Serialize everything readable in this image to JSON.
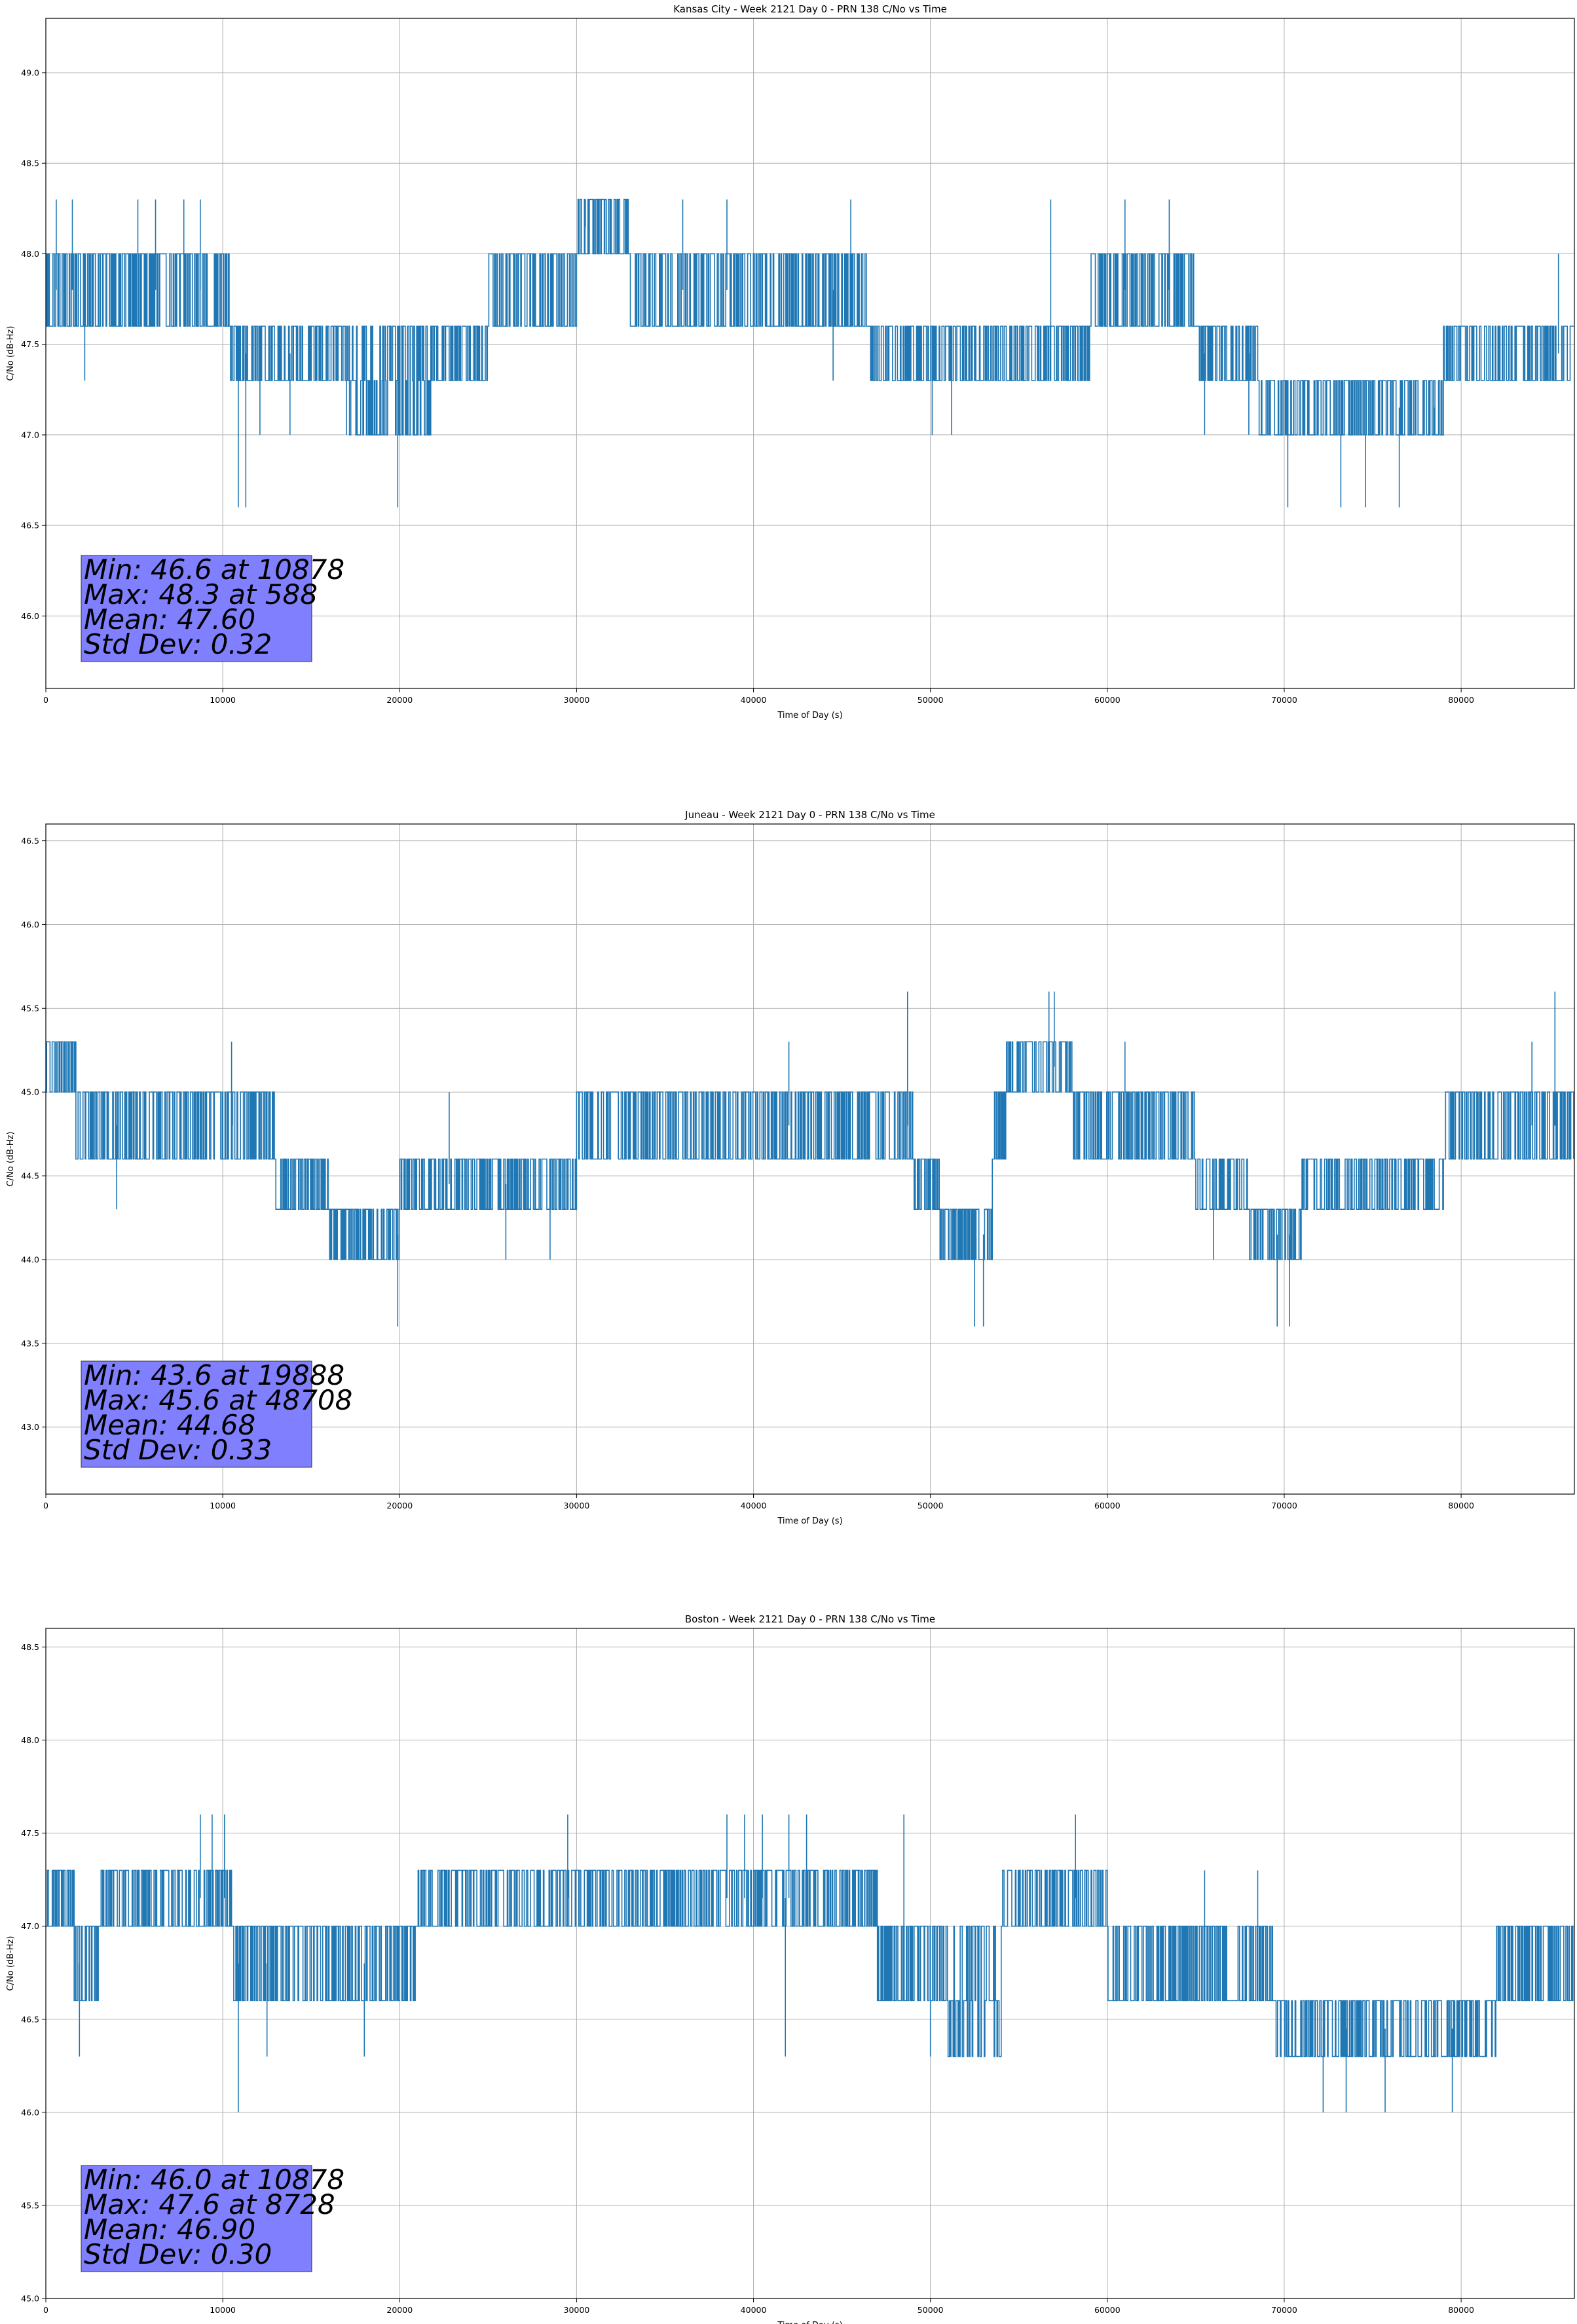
{
  "chart_data": [
    {
      "type": "line",
      "title": "Kansas City - Week 2121 Day 0 - PRN 138 C/No vs Time",
      "xlabel": "Time of Day (s)",
      "ylabel": "C/No (dB-Hz)",
      "xlim": [
        0,
        86400
      ],
      "ylim": [
        45.6,
        49.3
      ],
      "xticks": [
        0,
        10000,
        20000,
        30000,
        40000,
        50000,
        60000,
        70000,
        80000
      ],
      "yticks": [
        46.0,
        46.5,
        47.0,
        47.5,
        48.0,
        48.5,
        49.0
      ],
      "ytick_labels": [
        "46.0",
        "46.5",
        "47.0",
        "47.5",
        "48.0",
        "48.5",
        "49.0"
      ],
      "grid": true,
      "color": "#1f77b4",
      "stats_lines": [
        "Min: 46.6 at 10878",
        "Max: 48.3 at 588",
        "Mean: 47.60",
        "Std Dev: 0.32"
      ],
      "bands": [
        {
          "x0": 0,
          "x1": 10400,
          "levels": [
            47.6,
            48.0
          ]
        },
        {
          "x0": 10400,
          "x1": 17000,
          "levels": [
            47.3,
            47.6
          ]
        },
        {
          "x0": 17000,
          "x1": 22000,
          "levels": [
            47.0,
            47.3,
            47.6
          ]
        },
        {
          "x0": 22000,
          "x1": 25000,
          "levels": [
            47.3,
            47.6
          ]
        },
        {
          "x0": 25000,
          "x1": 30000,
          "levels": [
            47.6,
            48.0
          ]
        },
        {
          "x0": 30000,
          "x1": 33000,
          "levels": [
            48.0,
            48.3
          ]
        },
        {
          "x0": 33000,
          "x1": 46500,
          "levels": [
            47.6,
            48.0
          ]
        },
        {
          "x0": 46500,
          "x1": 59000,
          "levels": [
            47.3,
            47.6
          ]
        },
        {
          "x0": 59000,
          "x1": 65000,
          "levels": [
            47.6,
            48.0
          ]
        },
        {
          "x0": 65000,
          "x1": 68500,
          "levels": [
            47.3,
            47.6
          ]
        },
        {
          "x0": 68500,
          "x1": 72000,
          "levels": [
            47.0,
            47.3
          ]
        },
        {
          "x0": 72000,
          "x1": 75000,
          "levels": [
            47.0,
            47.3
          ]
        },
        {
          "x0": 75000,
          "x1": 79000,
          "levels": [
            47.0,
            47.3
          ]
        },
        {
          "x0": 79000,
          "x1": 86400,
          "levels": [
            47.3,
            47.6
          ]
        }
      ],
      "spikes": [
        [
          588,
          48.3
        ],
        [
          1500,
          48.3
        ],
        [
          2200,
          47.3
        ],
        [
          5200,
          48.3
        ],
        [
          6200,
          48.3
        ],
        [
          7800,
          48.3
        ],
        [
          8728,
          48.3
        ],
        [
          10878,
          46.6
        ],
        [
          11300,
          46.6
        ],
        [
          13800,
          47.0
        ],
        [
          19888,
          46.6
        ],
        [
          12100,
          47.0
        ],
        [
          17000,
          47.0
        ],
        [
          30500,
          48.3
        ],
        [
          36000,
          48.3
        ],
        [
          38500,
          48.3
        ],
        [
          44500,
          47.3
        ],
        [
          45500,
          48.3
        ],
        [
          50100,
          47.0
        ],
        [
          51200,
          47.0
        ],
        [
          56800,
          48.3
        ],
        [
          61000,
          48.3
        ],
        [
          63500,
          48.3
        ],
        [
          65500,
          47.0
        ],
        [
          68000,
          47.0
        ],
        [
          70200,
          46.6
        ],
        [
          73200,
          46.6
        ],
        [
          74600,
          46.6
        ],
        [
          76500,
          46.6
        ],
        [
          78500,
          47.0
        ],
        [
          85500,
          48.0
        ]
      ]
    },
    {
      "type": "line",
      "title": "Juneau - Week 2121 Day 0 - PRN 138 C/No vs Time",
      "xlabel": "Time of Day (s)",
      "ylabel": "C/No (dB-Hz)",
      "xlim": [
        0,
        86400
      ],
      "ylim": [
        42.6,
        46.6
      ],
      "xticks": [
        0,
        10000,
        20000,
        30000,
        40000,
        50000,
        60000,
        70000,
        80000
      ],
      "yticks": [
        43.0,
        43.5,
        44.0,
        44.5,
        45.0,
        45.5,
        46.0,
        46.5
      ],
      "ytick_labels": [
        "43.0",
        "43.5",
        "44.0",
        "44.5",
        "45.0",
        "45.5",
        "46.0",
        "46.5"
      ],
      "grid": true,
      "color": "#1f77b4",
      "stats_lines": [
        "Min: 43.6 at 19888",
        "Max: 45.6 at 48708",
        "Mean: 44.68",
        "Std Dev: 0.33"
      ],
      "bands": [
        {
          "x0": 0,
          "x1": 1700,
          "levels": [
            45.0,
            45.3
          ]
        },
        {
          "x0": 1700,
          "x1": 13000,
          "levels": [
            44.6,
            45.0
          ]
        },
        {
          "x0": 13000,
          "x1": 16000,
          "levels": [
            44.3,
            44.6
          ]
        },
        {
          "x0": 16000,
          "x1": 20000,
          "levels": [
            44.0,
            44.3
          ]
        },
        {
          "x0": 20000,
          "x1": 24000,
          "levels": [
            44.3,
            44.6
          ]
        },
        {
          "x0": 24000,
          "x1": 30000,
          "levels": [
            44.3,
            44.6
          ]
        },
        {
          "x0": 30000,
          "x1": 49000,
          "levels": [
            44.6,
            45.0
          ]
        },
        {
          "x0": 49000,
          "x1": 50500,
          "levels": [
            44.3,
            44.6
          ]
        },
        {
          "x0": 50500,
          "x1": 53500,
          "levels": [
            44.0,
            44.3
          ]
        },
        {
          "x0": 53500,
          "x1": 54300,
          "levels": [
            44.6,
            45.0
          ]
        },
        {
          "x0": 54300,
          "x1": 58000,
          "levels": [
            45.0,
            45.3
          ]
        },
        {
          "x0": 58000,
          "x1": 65000,
          "levels": [
            44.6,
            45.0
          ]
        },
        {
          "x0": 65000,
          "x1": 68000,
          "levels": [
            44.3,
            44.6
          ]
        },
        {
          "x0": 68000,
          "x1": 71000,
          "levels": [
            44.0,
            44.3
          ]
        },
        {
          "x0": 71000,
          "x1": 79000,
          "levels": [
            44.3,
            44.6
          ]
        },
        {
          "x0": 79000,
          "x1": 86400,
          "levels": [
            44.6,
            45.0
          ]
        }
      ],
      "spikes": [
        [
          19888,
          43.6
        ],
        [
          48708,
          45.6
        ],
        [
          52500,
          43.6
        ],
        [
          53000,
          43.6
        ],
        [
          56700,
          45.6
        ],
        [
          57000,
          45.6
        ],
        [
          69600,
          43.6
        ],
        [
          70300,
          43.6
        ],
        [
          85300,
          45.6
        ],
        [
          10500,
          45.3
        ],
        [
          22800,
          45.0
        ],
        [
          26000,
          44.0
        ],
        [
          28500,
          44.0
        ],
        [
          61000,
          45.3
        ],
        [
          66000,
          44.0
        ],
        [
          4000,
          44.3
        ],
        [
          42000,
          45.3
        ],
        [
          84000,
          45.3
        ]
      ]
    },
    {
      "type": "line",
      "title": "Boston - Week 2121 Day 0 - PRN 138 C/No vs Time",
      "xlabel": "Time of Day (s)",
      "ylabel": "C/No (dB-Hz)",
      "xlim": [
        0,
        86400
      ],
      "ylim": [
        45.0,
        48.6
      ],
      "xticks": [
        0,
        10000,
        20000,
        30000,
        40000,
        50000,
        60000,
        70000,
        80000
      ],
      "yticks": [
        45.0,
        45.5,
        46.0,
        46.5,
        47.0,
        47.5,
        48.0,
        48.5
      ],
      "ytick_labels": [
        "45.0",
        "45.5",
        "46.0",
        "46.5",
        "47.0",
        "47.5",
        "48.0",
        "48.5"
      ],
      "grid": true,
      "color": "#1f77b4",
      "stats_lines": [
        "Min: 46.0 at 10878",
        "Max: 47.6 at 8728",
        "Mean: 46.90",
        "Std Dev: 0.30"
      ],
      "bands": [
        {
          "x0": 0,
          "x1": 1600,
          "levels": [
            47.0,
            47.3
          ]
        },
        {
          "x0": 1600,
          "x1": 3000,
          "levels": [
            46.6,
            47.0
          ]
        },
        {
          "x0": 3000,
          "x1": 10500,
          "levels": [
            47.0,
            47.3
          ]
        },
        {
          "x0": 10500,
          "x1": 21000,
          "levels": [
            46.6,
            47.0
          ]
        },
        {
          "x0": 21000,
          "x1": 47000,
          "levels": [
            47.0,
            47.3
          ]
        },
        {
          "x0": 47000,
          "x1": 51000,
          "levels": [
            46.6,
            47.0
          ]
        },
        {
          "x0": 51000,
          "x1": 54000,
          "levels": [
            46.3,
            46.6,
            47.0
          ]
        },
        {
          "x0": 54000,
          "x1": 60000,
          "levels": [
            47.0,
            47.3
          ]
        },
        {
          "x0": 60000,
          "x1": 64000,
          "levels": [
            46.6,
            47.0
          ]
        },
        {
          "x0": 64000,
          "x1": 69500,
          "levels": [
            46.6,
            47.0
          ]
        },
        {
          "x0": 69500,
          "x1": 73000,
          "levels": [
            46.3,
            46.6
          ]
        },
        {
          "x0": 73000,
          "x1": 82000,
          "levels": [
            46.3,
            46.6
          ]
        },
        {
          "x0": 82000,
          "x1": 86400,
          "levels": [
            46.6,
            47.0
          ]
        }
      ],
      "spikes": [
        [
          8728,
          47.6
        ],
        [
          9400,
          47.6
        ],
        [
          10100,
          47.6
        ],
        [
          10878,
          46.0
        ],
        [
          1900,
          46.3
        ],
        [
          29500,
          47.6
        ],
        [
          38500,
          47.6
        ],
        [
          39500,
          47.6
        ],
        [
          40500,
          47.6
        ],
        [
          42000,
          47.6
        ],
        [
          43000,
          47.6
        ],
        [
          48500,
          47.6
        ],
        [
          58200,
          47.6
        ],
        [
          72200,
          46.0
        ],
        [
          73500,
          46.0
        ],
        [
          75700,
          46.0
        ],
        [
          79500,
          46.0
        ],
        [
          41800,
          46.3
        ],
        [
          50000,
          46.3
        ],
        [
          12500,
          46.3
        ],
        [
          18000,
          46.3
        ],
        [
          65500,
          47.3
        ],
        [
          68500,
          47.3
        ]
      ]
    }
  ]
}
